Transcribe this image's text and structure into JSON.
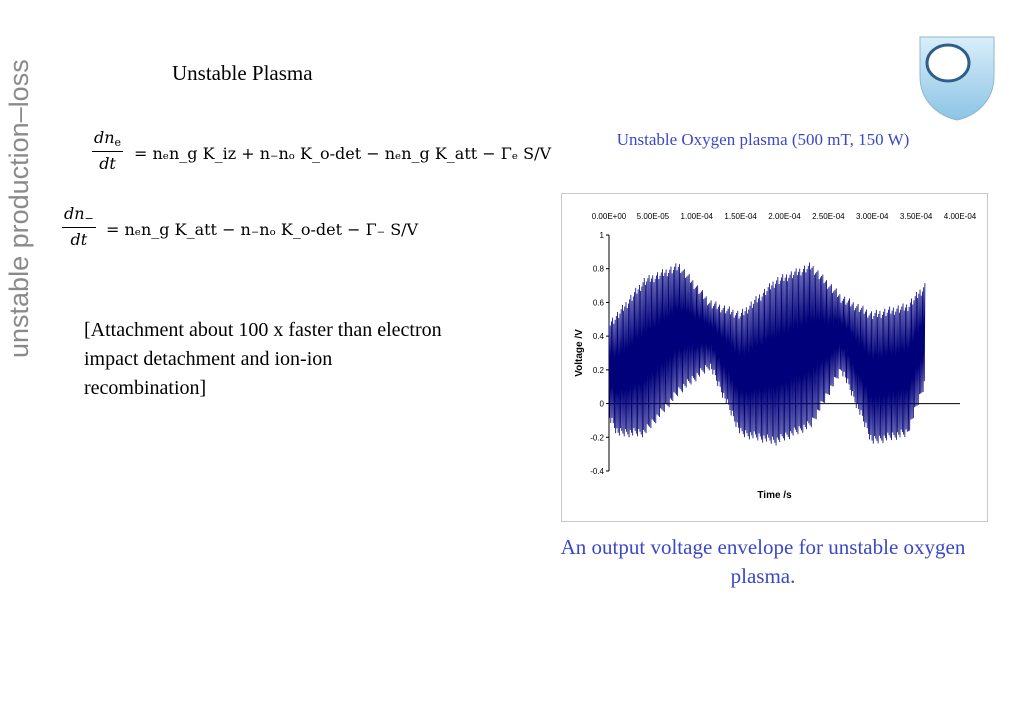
{
  "sidebar_title": "unstable production–loss",
  "slide_title": "Unstable Plasma",
  "equations": {
    "eq1": {
      "lhs_num": "dn",
      "lhs_num_sub": "e",
      "lhs_den": "dt",
      "rhs": "= nₑn_g K_iz + n₋nₒ K_o-det − nₑn_g K_att − Γₑ S/V"
    },
    "eq2": {
      "lhs_num": "dn",
      "lhs_num_sub": "−",
      "lhs_den": "dt",
      "rhs": "= nₑn_g K_att − n₋nₒ K_o-det − Γ₋ S/V"
    }
  },
  "note": "[Attachment about 100 x faster than electron impact detachment and ion-ion recombination]",
  "chart_title": "Unstable Oxygen plasma (500 mT, 150 W)",
  "caption": "An output voltage envelope for unstable oxygen plasma.",
  "colors": {
    "accent": "#3b47c7",
    "signal": "#00007a",
    "sidebar": "#8a8a8a"
  },
  "chart_data": {
    "type": "line",
    "title": "",
    "xlabel": "Time /s",
    "ylabel": "Voltage /V",
    "x_axis_position": "top",
    "xlim": [
      0,
      0.0004
    ],
    "ylim": [
      -0.4,
      1
    ],
    "x_ticks": [
      "0.00E+00",
      "5.00E-05",
      "1.00E-04",
      "1.50E-04",
      "2.00E-04",
      "2.50E-04",
      "3.00E-04",
      "3.50E-04",
      "4.00E-04"
    ],
    "y_ticks": [
      "1",
      "0.8",
      "0.6",
      "0.4",
      "0.2",
      "0",
      "-0.2",
      "-0.4"
    ],
    "grid": false,
    "series": [
      {
        "name": "",
        "description_envelope": {
          "x": [
            0,
            1e-05,
            4e-05,
            8e-05,
            0.000115,
            0.00015,
            0.00019,
            0.00023,
            0.000265,
            0.0003,
            0.00034,
            0.00036
          ],
          "upper": [
            0.5,
            0.55,
            0.75,
            0.84,
            0.62,
            0.55,
            0.75,
            0.84,
            0.65,
            0.55,
            0.6,
            0.72
          ],
          "lower": [
            -0.1,
            -0.2,
            -0.2,
            0.05,
            0.2,
            -0.2,
            -0.25,
            -0.15,
            0.18,
            -0.25,
            -0.2,
            0.1
          ]
        }
      }
    ]
  }
}
